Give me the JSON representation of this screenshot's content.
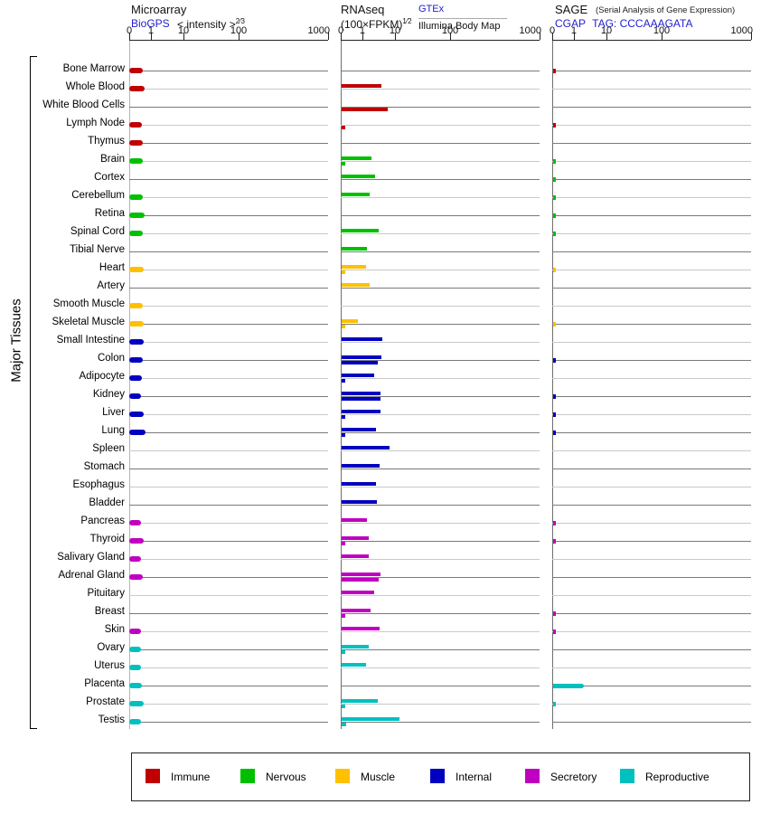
{
  "panels_header": {
    "microarray": {
      "title": "Microarray",
      "link": "BioGPS",
      "scale_base": "< intensity >",
      "scale_sup": "2⁄3"
    },
    "rnaseq": {
      "title": "RNAseq",
      "unit_base": "(100×FPKM)",
      "unit_sup": "1⁄2",
      "source_top": "GTEx",
      "source_bottom": "Illumina Body Map"
    },
    "sage": {
      "title": "SAGE",
      "title_note": "(Serial Analysis of Gene Expression)",
      "link": "CGAP",
      "tag": "TAG: CCCAAAGATA"
    }
  },
  "axis": {
    "ticks": [
      "0",
      "1",
      "10",
      "100",
      "1000"
    ]
  },
  "group_label": "Major Tissues",
  "legend": {
    "items": [
      {
        "label": "Immune",
        "color": "#c00000"
      },
      {
        "label": "Nervous",
        "color": "#00c000"
      },
      {
        "label": "Muscle",
        "color": "#ffc000"
      },
      {
        "label": "Internal",
        "color": "#0000c0"
      },
      {
        "label": "Secretory",
        "color": "#c000c0"
      },
      {
        "label": "Reproductive",
        "color": "#00c0c0"
      }
    ]
  },
  "chart_data": {
    "type": "bar",
    "ylabel": "Major Tissues",
    "axis_note": "nonlinear intensity axis 0-1000, ticks at 0,1,10,100,1000",
    "panels": [
      {
        "name": "Microarray",
        "series": [
          "BioGPS"
        ]
      },
      {
        "name": "RNAseq",
        "series": [
          "GTEx",
          "Illumina Body Map"
        ]
      },
      {
        "name": "SAGE",
        "series": [
          "CGAP"
        ]
      }
    ],
    "tissues": [
      {
        "label": "Bone Marrow",
        "category": "Immune",
        "microarray": 0.63,
        "gtex": null,
        "illumina": null,
        "sage": 0.1
      },
      {
        "label": "Whole Blood",
        "category": "Immune",
        "microarray": 0.71,
        "gtex": 6.1,
        "illumina": null,
        "sage": null
      },
      {
        "label": "White Blood Cells",
        "category": "Immune",
        "microarray": null,
        "gtex": null,
        "illumina": 7.8,
        "sage": null
      },
      {
        "label": "Lymph Node",
        "category": "Immune",
        "microarray": 0.58,
        "gtex": null,
        "illumina": 0.17,
        "sage": 0.1
      },
      {
        "label": "Thymus",
        "category": "Immune",
        "microarray": 0.63,
        "gtex": null,
        "illumina": null,
        "sage": null
      },
      {
        "label": "Brain",
        "category": "Nervous",
        "microarray": 0.63,
        "gtex": 3.2,
        "illumina": 0.15,
        "sage": 0.1
      },
      {
        "label": "Cortex",
        "category": "Nervous",
        "microarray": null,
        "gtex": 4.2,
        "illumina": null,
        "sage": 0.1
      },
      {
        "label": "Cerebellum",
        "category": "Nervous",
        "microarray": 0.63,
        "gtex": 2.7,
        "illumina": null,
        "sage": 0.1
      },
      {
        "label": "Retina",
        "category": "Nervous",
        "microarray": 0.71,
        "gtex": null,
        "illumina": null,
        "sage": 0.1
      },
      {
        "label": "Spinal Cord",
        "category": "Nervous",
        "microarray": 0.63,
        "gtex": 5.2,
        "illumina": null,
        "sage": 0.1
      },
      {
        "label": "Tibial Nerve",
        "category": "Nervous",
        "microarray": null,
        "gtex": 1.9,
        "illumina": null,
        "sage": null
      },
      {
        "label": "Heart",
        "category": "Muscle",
        "microarray": 0.67,
        "gtex": 1.8,
        "illumina": 0.15,
        "sage": 0.1
      },
      {
        "label": "Artery",
        "category": "Muscle",
        "microarray": null,
        "gtex": 2.7,
        "illumina": null,
        "sage": null
      },
      {
        "label": "Smooth Muscle",
        "category": "Muscle",
        "microarray": 0.63,
        "gtex": null,
        "illumina": null,
        "sage": null
      },
      {
        "label": "Skeletal Muscle",
        "category": "Muscle",
        "microarray": 0.67,
        "gtex": 0.74,
        "illumina": 0.15,
        "sage": 0.1
      },
      {
        "label": "Small Intestine",
        "category": "Internal",
        "microarray": 0.67,
        "gtex": 6.2,
        "illumina": null,
        "sage": null
      },
      {
        "label": "Colon",
        "category": "Internal",
        "microarray": 0.63,
        "gtex": 6.0,
        "illumina": 5.0,
        "sage": 0.1
      },
      {
        "label": "Adipocyte",
        "category": "Internal",
        "microarray": 0.58,
        "gtex": 3.9,
        "illumina": 0.17,
        "sage": null
      },
      {
        "label": "Kidney",
        "category": "Internal",
        "microarray": 0.54,
        "gtex": 5.7,
        "illumina": 5.8,
        "sage": 0.1
      },
      {
        "label": "Liver",
        "category": "Internal",
        "microarray": 0.67,
        "gtex": 5.8,
        "illumina": 0.15,
        "sage": 0.1
      },
      {
        "label": "Lung",
        "category": "Internal",
        "microarray": 0.75,
        "gtex": 4.4,
        "illumina": 0.15,
        "sage": 0.1
      },
      {
        "label": "Spleen",
        "category": "Internal",
        "microarray": null,
        "gtex": 8.3,
        "illumina": null,
        "sage": null
      },
      {
        "label": "Stomach",
        "category": "Internal",
        "microarray": null,
        "gtex": 5.4,
        "illumina": null,
        "sage": null
      },
      {
        "label": "Esophagus",
        "category": "Internal",
        "microarray": null,
        "gtex": 4.6,
        "illumina": null,
        "sage": null
      },
      {
        "label": "Bladder",
        "category": "Internal",
        "microarray": null,
        "gtex": 4.7,
        "illumina": null,
        "sage": null
      },
      {
        "label": "Pancreas",
        "category": "Secretory",
        "microarray": 0.54,
        "gtex": 2.0,
        "illumina": null,
        "sage": 0.1
      },
      {
        "label": "Thyroid",
        "category": "Secretory",
        "microarray": 0.67,
        "gtex": 2.6,
        "illumina": 0.15,
        "sage": 0.1
      },
      {
        "label": "Salivary Gland",
        "category": "Secretory",
        "microarray": 0.5,
        "gtex": 2.4,
        "illumina": null,
        "sage": null
      },
      {
        "label": "Adrenal Gland",
        "category": "Secretory",
        "microarray": 0.63,
        "gtex": 5.8,
        "illumina": 5.2,
        "sage": null
      },
      {
        "label": "Pituitary",
        "category": "Secretory",
        "microarray": null,
        "gtex": 3.9,
        "illumina": null,
        "sage": null
      },
      {
        "label": "Breast",
        "category": "Secretory",
        "microarray": null,
        "gtex": 3.0,
        "illumina": 0.15,
        "sage": 0.1
      },
      {
        "label": "Skin",
        "category": "Secretory",
        "microarray": 0.5,
        "gtex": 5.5,
        "illumina": null,
        "sage": 0.1
      },
      {
        "label": "Ovary",
        "category": "Reproductive",
        "microarray": 0.46,
        "gtex": 2.5,
        "illumina": 0.15,
        "sage": null
      },
      {
        "label": "Uterus",
        "category": "Reproductive",
        "microarray": 0.54,
        "gtex": 1.7,
        "illumina": null,
        "sage": null
      },
      {
        "label": "Placenta",
        "category": "Reproductive",
        "microarray": 0.58,
        "gtex": null,
        "illumina": null,
        "sage": 3.5
      },
      {
        "label": "Prostate",
        "category": "Reproductive",
        "microarray": 0.67,
        "gtex": 5.1,
        "illumina": 0.15,
        "sage": 0.1
      },
      {
        "label": "Testis",
        "category": "Reproductive",
        "microarray": 0.54,
        "gtex": 16,
        "illumina": 0.2,
        "sage": null
      }
    ]
  }
}
